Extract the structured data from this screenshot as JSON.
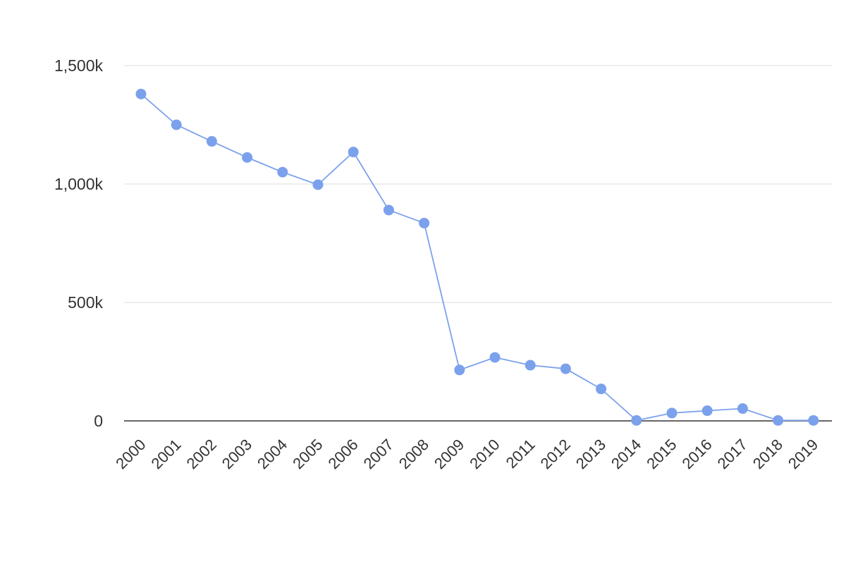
{
  "chart_data": {
    "type": "line",
    "title": "",
    "xlabel": "",
    "ylabel": "",
    "x": [
      "2000",
      "2001",
      "2002",
      "2003",
      "2004",
      "2005",
      "2006",
      "2007",
      "2008",
      "2009",
      "2010",
      "2011",
      "2012",
      "2013",
      "2014",
      "2015",
      "2016",
      "2017",
      "2018",
      "2019"
    ],
    "series": [
      {
        "values": [
          1380000,
          1250000,
          1180000,
          1112000,
          1050000,
          997000,
          1135000,
          890000,
          835000,
          215000,
          268000,
          235000,
          220000,
          135000,
          2000,
          33000,
          43000,
          52000,
          2000,
          2000
        ]
      }
    ],
    "ylim": [
      0,
      1500000
    ],
    "y_ticks": [
      {
        "value": 0,
        "label": "0"
      },
      {
        "value": 500000,
        "label": "500k"
      },
      {
        "value": 1000000,
        "label": "1,000k"
      },
      {
        "value": 1500000,
        "label": "1,500k"
      }
    ],
    "grid": true,
    "legend": "none",
    "colors": {
      "series": "#7ba1ec",
      "grid": "#dddddd",
      "baseline": "#333333",
      "text": "#333333"
    }
  }
}
